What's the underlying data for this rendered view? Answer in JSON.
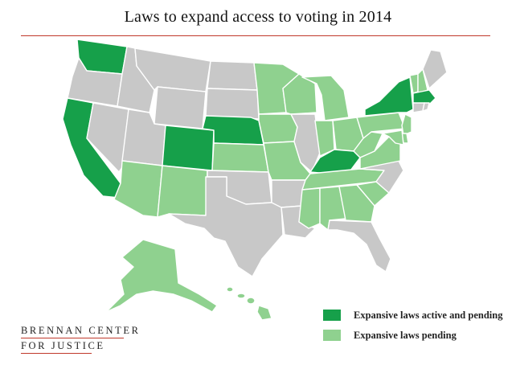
{
  "title": "Laws to expand access to voting in 2014",
  "colors": {
    "active_and_pending": "#16a04a",
    "pending": "#8fd18f",
    "none": "#c8c8c8",
    "rule": "#c0392b"
  },
  "legend": {
    "active_and_pending": "Expansive laws active and pending",
    "pending": "Expansive laws pending"
  },
  "logo": {
    "line1": "BRENNAN CENTER",
    "line2": "FOR JUSTICE"
  },
  "states": {
    "WA": "active_and_pending",
    "OR": "none",
    "CA": "active_and_pending",
    "NV": "none",
    "ID": "none",
    "MT": "none",
    "WY": "none",
    "UT": "none",
    "AZ": "pending",
    "CO": "active_and_pending",
    "NM": "pending",
    "ND": "none",
    "SD": "none",
    "NE": "active_and_pending",
    "KS": "pending",
    "OK": "none",
    "TX": "none",
    "MN": "pending",
    "IA": "pending",
    "MO": "pending",
    "AR": "none",
    "LA": "none",
    "WI": "pending",
    "IL": "none",
    "MI": "pending",
    "IN": "pending",
    "OH": "pending",
    "KY": "active_and_pending",
    "TN": "pending",
    "MS": "pending",
    "AL": "pending",
    "GA": "pending",
    "FL": "none",
    "SC": "pending",
    "NC": "none",
    "VA": "pending",
    "WV": "pending",
    "PA": "pending",
    "NY": "active_and_pending",
    "VT": "pending",
    "NH": "pending",
    "ME": "none",
    "MA": "active_and_pending",
    "CT": "none",
    "RI": "none",
    "NJ": "pending",
    "DE": "pending",
    "MD": "pending",
    "AK": "pending",
    "HI": "pending"
  }
}
